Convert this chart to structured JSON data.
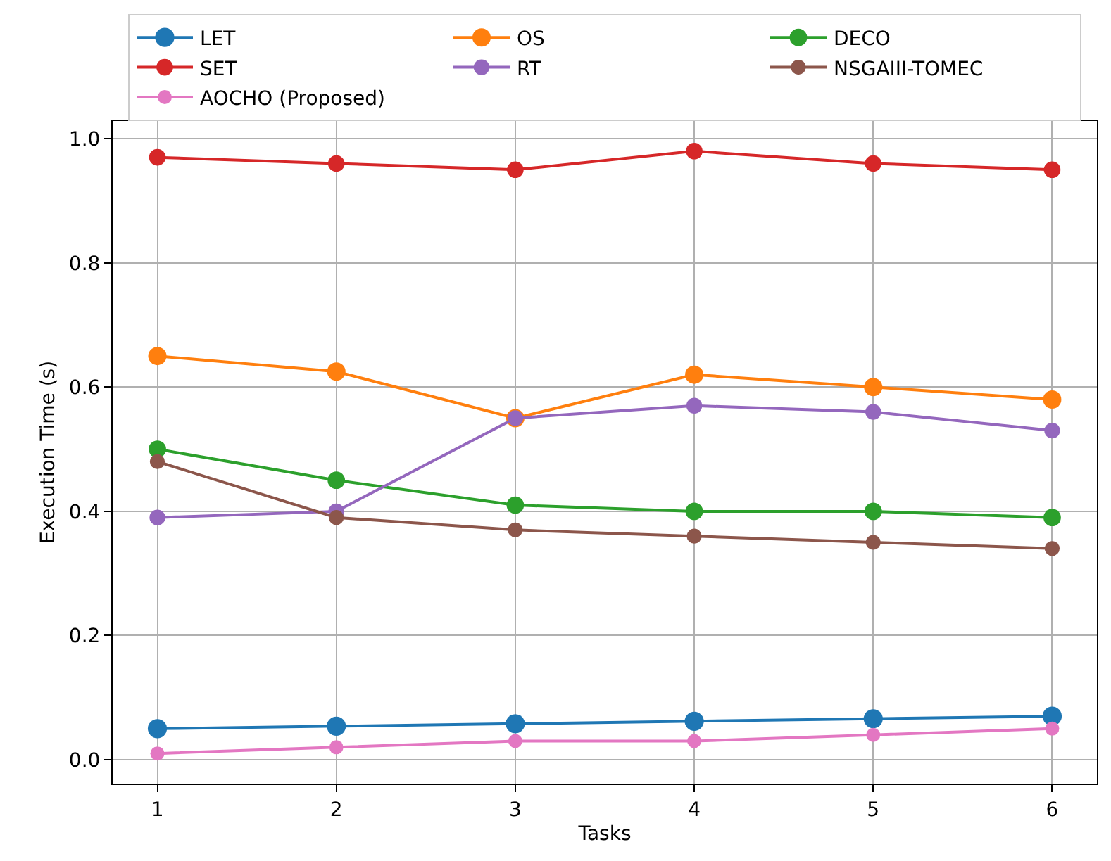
{
  "chart_data": {
    "type": "line",
    "xlabel": "Tasks",
    "ylabel": "Execution Time (s)",
    "x": [
      1,
      2,
      3,
      4,
      5,
      6
    ],
    "series": [
      {
        "name": "LET",
        "color": "#1f77b4",
        "values": [
          0.05,
          0.054,
          0.058,
          0.062,
          0.066,
          0.07
        ]
      },
      {
        "name": "OS",
        "color": "#ff7f0e",
        "values": [
          0.65,
          0.625,
          0.55,
          0.62,
          0.6,
          0.58
        ]
      },
      {
        "name": "DECO",
        "color": "#2ca02c",
        "values": [
          0.5,
          0.45,
          0.41,
          0.4,
          0.4,
          0.39
        ]
      },
      {
        "name": "SET",
        "color": "#d62728",
        "values": [
          0.97,
          0.96,
          0.95,
          0.98,
          0.96,
          0.95
        ]
      },
      {
        "name": "RT",
        "color": "#9467bd",
        "values": [
          0.39,
          0.4,
          0.55,
          0.57,
          0.56,
          0.53
        ]
      },
      {
        "name": "NSGAIII-TOMEC",
        "color": "#8c564b",
        "values": [
          0.48,
          0.39,
          0.37,
          0.36,
          0.35,
          0.34
        ]
      },
      {
        "name": "AOCHO (Proposed)",
        "color": "#e377c2",
        "values": [
          0.01,
          0.02,
          0.03,
          0.03,
          0.04,
          0.05
        ]
      }
    ],
    "xlim": [
      0.75,
      6.25
    ],
    "xticks": [
      1,
      2,
      3,
      4,
      5,
      6
    ],
    "ylim": [
      -0.0385,
      1.0285
    ],
    "yticks": [
      {
        "value": 0,
        "label": "0.0"
      },
      {
        "value": 0.2,
        "label": "0.2"
      },
      {
        "value": 0.4,
        "label": "0.4"
      },
      {
        "value": 0.6,
        "label": "0.6"
      },
      {
        "value": 0.8,
        "label": "0.8"
      },
      {
        "value": 1.0,
        "label": "1.0"
      }
    ],
    "grid": true,
    "legend": "top",
    "marker": "circle",
    "line_style": "solid"
  }
}
